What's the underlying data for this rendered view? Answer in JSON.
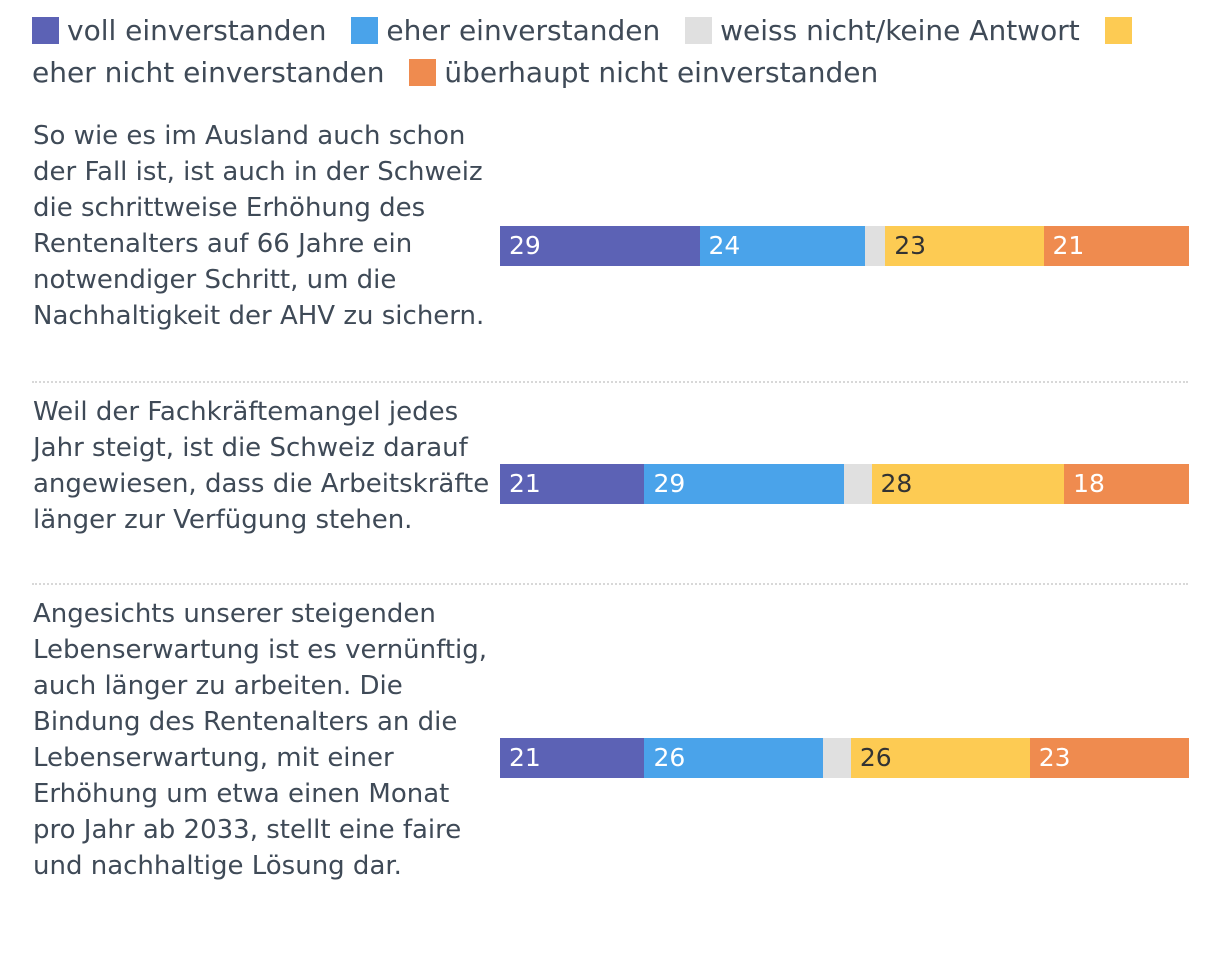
{
  "legend": {
    "items": [
      {
        "label": "voll einverstanden",
        "color": "#5c62b5"
      },
      {
        "label": "eher einverstanden",
        "color": "#4aa3ea"
      },
      {
        "label": "weiss nicht/keine Antwort",
        "color": "#e0e0e0"
      },
      {
        "label": "eher nicht einverstanden",
        "color": "#fdcb53"
      },
      {
        "label": "überhaupt nicht einverstanden",
        "color": "#ef8b4f"
      }
    ]
  },
  "chart_data": {
    "type": "bar",
    "orientation": "horizontal",
    "stacked": true,
    "normalized_to": 100,
    "categories": [
      "So wie es im Ausland auch schon der Fall ist, ist auch in der Schweiz die schrittweise Erhöhung des Rentenalters auf 66 Jahre ein notwendiger Schritt, um die Nachhaltigkeit der AHV zu sichern.",
      "Weil der Fachkräftemangel jedes Jahr steigt, ist die Schweiz darauf angewiesen, dass die Arbeitskräfte länger zur Verfügung stehen.",
      "Angesichts unserer steigenden Lebenserwartung ist es vernünftig, auch länger zu arbeiten. Die Bindung des Rentenalters an die Lebenserwartung, mit einer Erhöhung um etwa einen Monat pro Jahr ab 2033, stellt eine faire und nachhaltige Lösung dar."
    ],
    "series": [
      {
        "name": "voll einverstanden",
        "color": "#5c62b5",
        "label_color": "#ffffff",
        "values": [
          29,
          21,
          21
        ]
      },
      {
        "name": "eher einverstanden",
        "color": "#4aa3ea",
        "label_color": "#ffffff",
        "values": [
          24,
          29,
          26
        ]
      },
      {
        "name": "weiss nicht/keine Antwort",
        "color": "#e0e0e0",
        "label_color": "#3f4a57",
        "values": [
          3,
          4,
          4
        ]
      },
      {
        "name": "eher nicht einverstanden",
        "color": "#fdcb53",
        "label_color": "#333333",
        "values": [
          23,
          28,
          26
        ]
      },
      {
        "name": "überhaupt nicht einverstanden",
        "color": "#ef8b4f",
        "label_color": "#ffffff",
        "values": [
          21,
          18,
          23
        ]
      }
    ],
    "show_labels": [
      true,
      true,
      false,
      true,
      true
    ],
    "legend_position": "top",
    "grid": false
  }
}
